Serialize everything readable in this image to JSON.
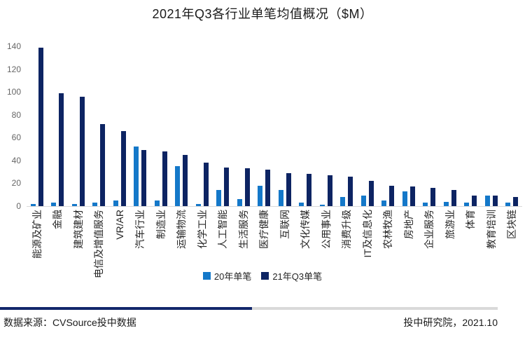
{
  "title": "2021年Q3各行业单笔均值概况（$M）",
  "chart_data": {
    "type": "bar",
    "title": "2021年Q3各行业单笔均值概况（$M）",
    "categories": [
      "能源及矿业",
      "金融",
      "建筑建材",
      "电信及增值服务",
      "VR/AR",
      "汽车行业",
      "制造业",
      "运输物流",
      "化学工业",
      "人工智能",
      "生活服务",
      "医疗健康",
      "互联网",
      "文化传媒",
      "公用事业",
      "消费升级",
      "IT及信息化",
      "农林牧渔",
      "房地产",
      "企业服务",
      "旅游业",
      "体育",
      "教育培训",
      "区块链"
    ],
    "series": [
      {
        "name": "20年单笔",
        "color": "#1478C9",
        "values": [
          2,
          3,
          2,
          3,
          5,
          52,
          5,
          35,
          2,
          14,
          6,
          18,
          14,
          3,
          1,
          8,
          9,
          5,
          13,
          3,
          4,
          3,
          9,
          3
        ]
      },
      {
        "name": "21年Q3单笔",
        "color": "#0D2463",
        "values": [
          139,
          99,
          96,
          72,
          66,
          49,
          48,
          45,
          38,
          34,
          33,
          32,
          29,
          28,
          27,
          26,
          22,
          18,
          17,
          16,
          14,
          9,
          9,
          8
        ]
      }
    ],
    "ylim": [
      0,
      140
    ],
    "yticks": [
      0,
      20,
      40,
      60,
      80,
      100,
      120,
      140
    ],
    "xlabel": "",
    "ylabel": "",
    "grid": false,
    "legend_position": "bottom",
    "x_label_rotation": -90
  },
  "legend": {
    "item1": "20年单笔",
    "item2": "21年Q3单笔"
  },
  "footer": {
    "source": "数据来源：CVSource投中数据",
    "credit": "投中研究院，2021.10"
  },
  "colors": {
    "series_20y": "#1478C9",
    "series_21q3": "#0D2463",
    "axis_line": "#d9d9d9",
    "tick_label": "#666666",
    "divider_navy": "#12276B",
    "divider_gray": "#d9d9d9"
  }
}
